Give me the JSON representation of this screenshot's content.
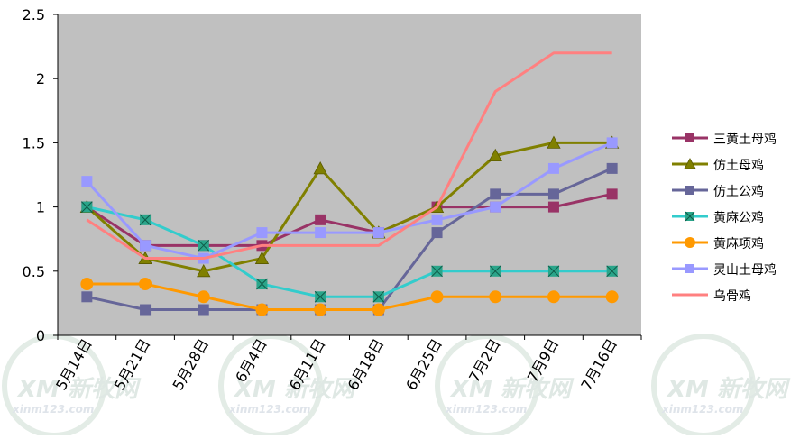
{
  "chart_data": {
    "type": "line",
    "title": "",
    "xlabel": "",
    "ylabel": "",
    "ylim": [
      0,
      2.5
    ],
    "yticks": [
      "0",
      "0.5",
      "1",
      "1.5",
      "2",
      "2.5"
    ],
    "categories": [
      "5月14日",
      "5月21日",
      "5月28日",
      "6月4日",
      "6月11日",
      "6月18日",
      "6月25日",
      "7月2日",
      "7月9日",
      "7月16日"
    ],
    "grid": false,
    "plot_background": "#c0c0c0",
    "legend_position": "right",
    "series": [
      {
        "name": "三黄土母鸡",
        "color": "#993366",
        "marker": "square",
        "values": [
          1.0,
          0.7,
          0.7,
          0.7,
          0.9,
          0.8,
          1.0,
          1.0,
          1.0,
          1.1
        ]
      },
      {
        "name": "仿土母鸡",
        "color": "#808000",
        "marker": "triangle",
        "values": [
          1.0,
          0.6,
          0.5,
          0.6,
          1.3,
          0.8,
          1.0,
          1.4,
          1.5,
          1.5
        ]
      },
      {
        "name": "仿土公鸡",
        "color": "#666699",
        "marker": "square",
        "values": [
          0.3,
          0.2,
          0.2,
          0.2,
          0.2,
          0.2,
          0.8,
          1.1,
          1.1,
          1.3
        ]
      },
      {
        "name": "黄麻公鸡",
        "color": "#33cccc",
        "marker": "square-x",
        "values": [
          1.0,
          0.9,
          0.7,
          0.4,
          0.3,
          0.3,
          0.5,
          0.5,
          0.5,
          0.5
        ]
      },
      {
        "name": "黄麻项鸡",
        "color": "#ff9900",
        "marker": "circle",
        "values": [
          0.4,
          0.4,
          0.3,
          0.2,
          0.2,
          0.2,
          0.3,
          0.3,
          0.3,
          0.3
        ]
      },
      {
        "name": "灵山土母鸡",
        "color": "#9999ff",
        "marker": "square",
        "values": [
          1.2,
          0.7,
          0.6,
          0.8,
          0.8,
          0.8,
          0.9,
          1.0,
          1.3,
          1.5
        ]
      },
      {
        "name": "乌骨鸡",
        "color": "#ff8080",
        "marker": "none",
        "values": [
          0.9,
          0.6,
          0.6,
          0.7,
          0.7,
          0.7,
          1.0,
          1.9,
          2.2,
          2.2
        ]
      }
    ]
  },
  "watermark": {
    "brand": "XM 新牧网",
    "url": "xinm123.com"
  }
}
